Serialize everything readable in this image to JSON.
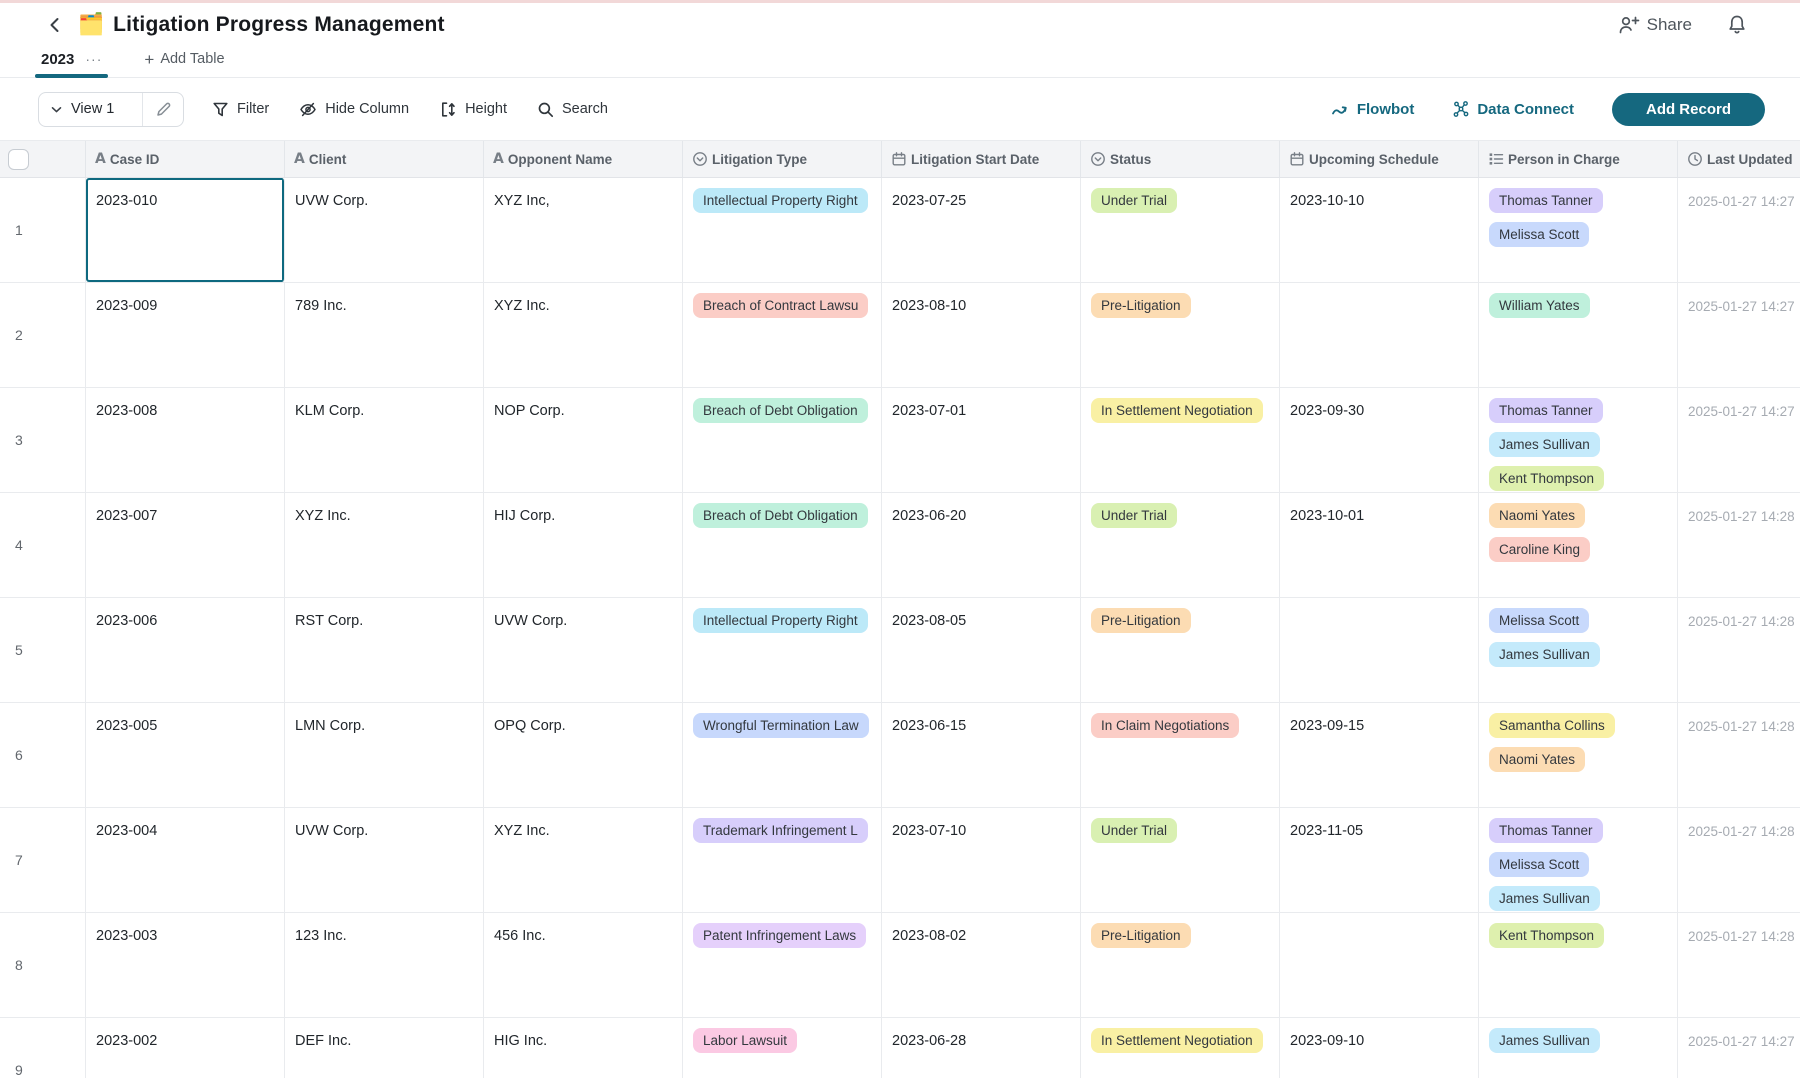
{
  "app": {
    "title_emoji": "🗂️",
    "title": "Litigation Progress Management",
    "share_label": "Share"
  },
  "tabs": {
    "active_tab": "2023",
    "more": "···",
    "add_table_plus": "+",
    "add_table": "Add Table"
  },
  "toolbar": {
    "view_name": "View 1",
    "filter": "Filter",
    "hide_column": "Hide Column",
    "height": "Height",
    "search": "Search",
    "flowbot": "Flowbot",
    "data_connect": "Data Connect",
    "add_record": "Add Record"
  },
  "colors": {
    "accent": "#15687F",
    "chip": {
      "cyan": "#BCE9F8",
      "salmon": "#FBCDC6",
      "mint": "#BFF0DC",
      "periwinkle": "#C7D8FC",
      "violet": "#D7CEFB",
      "purple": "#E5D0FB",
      "pink": "#FBC9E3",
      "green": "#D9F0B2",
      "peach": "#FCDCB3",
      "yellow": "#F9F0A4",
      "sky": "#C4EAFB",
      "lime": "#DEF0AE",
      "blue": "#C8D9FC"
    }
  },
  "table": {
    "columns": [
      {
        "label": "Case ID",
        "type": "text"
      },
      {
        "label": "Client",
        "type": "text"
      },
      {
        "label": "Opponent Name",
        "type": "text"
      },
      {
        "label": "Litigation Type",
        "type": "select"
      },
      {
        "label": "Litigation Start Date",
        "type": "date"
      },
      {
        "label": "Status",
        "type": "select"
      },
      {
        "label": "Upcoming Schedule",
        "type": "date"
      },
      {
        "label": "Person in Charge",
        "type": "person"
      },
      {
        "label": "Last Updated",
        "type": "time"
      }
    ],
    "rows": [
      {
        "num": "1",
        "case_id": "2023-010",
        "client": "UVW Corp.",
        "opponent": "XYZ Inc,",
        "type": {
          "label": "Intellectual Property Right",
          "color": "cyan"
        },
        "start": "2023-07-25",
        "status": {
          "label": "Under Trial",
          "color": "green"
        },
        "upcoming": "2023-10-10",
        "persons": [
          {
            "name": "Thomas Tanner",
            "color": "violet"
          },
          {
            "name": "Melissa Scott",
            "color": "blue"
          }
        ],
        "updated": "2025-01-27 14:27",
        "selected_cell": "case_id"
      },
      {
        "num": "2",
        "case_id": "2023-009",
        "client": "789 Inc.",
        "opponent": "XYZ Inc.",
        "type": {
          "label": "Breach of Contract Lawsu",
          "color": "salmon"
        },
        "start": "2023-08-10",
        "status": {
          "label": "Pre-Litigation",
          "color": "peach"
        },
        "upcoming": "",
        "persons": [
          {
            "name": "William Yates",
            "color": "mint"
          }
        ],
        "updated": "2025-01-27 14:27"
      },
      {
        "num": "3",
        "case_id": "2023-008",
        "client": "KLM Corp.",
        "opponent": "NOP Corp.",
        "type": {
          "label": "Breach of Debt Obligation",
          "color": "mint"
        },
        "start": "2023-07-01",
        "status": {
          "label": "In Settlement Negotiation",
          "color": "yellow"
        },
        "upcoming": "2023-09-30",
        "persons": [
          {
            "name": "Thomas Tanner",
            "color": "violet"
          },
          {
            "name": "James Sullivan",
            "color": "sky"
          },
          {
            "name": "Kent Thompson",
            "color": "lime"
          }
        ],
        "updated": "2025-01-27 14:27"
      },
      {
        "num": "4",
        "case_id": "2023-007",
        "client": "XYZ Inc.",
        "opponent": "HIJ Corp.",
        "type": {
          "label": "Breach of Debt Obligation",
          "color": "mint"
        },
        "start": "2023-06-20",
        "status": {
          "label": "Under Trial",
          "color": "green"
        },
        "upcoming": "2023-10-01",
        "persons": [
          {
            "name": "Naomi Yates",
            "color": "peach"
          },
          {
            "name": "Caroline King",
            "color": "salmon"
          }
        ],
        "updated": "2025-01-27 14:28"
      },
      {
        "num": "5",
        "case_id": "2023-006",
        "client": "RST Corp.",
        "opponent": "UVW Corp.",
        "type": {
          "label": "Intellectual Property Right",
          "color": "cyan"
        },
        "start": "2023-08-05",
        "status": {
          "label": "Pre-Litigation",
          "color": "peach"
        },
        "upcoming": "",
        "persons": [
          {
            "name": "Melissa Scott",
            "color": "blue"
          },
          {
            "name": "James Sullivan",
            "color": "sky"
          }
        ],
        "updated": "2025-01-27 14:28"
      },
      {
        "num": "6",
        "case_id": "2023-005",
        "client": "LMN Corp.",
        "opponent": "OPQ Corp.",
        "type": {
          "label": "Wrongful Termination Law",
          "color": "periwinkle"
        },
        "start": "2023-06-15",
        "status": {
          "label": "In Claim Negotiations",
          "color": "salmon"
        },
        "upcoming": "2023-09-15",
        "persons": [
          {
            "name": "Samantha Collins",
            "color": "yellow"
          },
          {
            "name": "Naomi Yates",
            "color": "peach"
          }
        ],
        "updated": "2025-01-27 14:28"
      },
      {
        "num": "7",
        "case_id": "2023-004",
        "client": "UVW Corp.",
        "opponent": "XYZ Inc.",
        "type": {
          "label": "Trademark Infringement L",
          "color": "violet"
        },
        "start": "2023-07-10",
        "status": {
          "label": "Under Trial",
          "color": "green"
        },
        "upcoming": "2023-11-05",
        "persons": [
          {
            "name": "Thomas Tanner",
            "color": "violet"
          },
          {
            "name": "Melissa Scott",
            "color": "blue"
          },
          {
            "name": "James Sullivan",
            "color": "sky"
          }
        ],
        "updated": "2025-01-27 14:28"
      },
      {
        "num": "8",
        "case_id": "2023-003",
        "client": "123 Inc.",
        "opponent": "456 Inc.",
        "type": {
          "label": "Patent Infringement Laws",
          "color": "purple"
        },
        "start": "2023-08-02",
        "status": {
          "label": "Pre-Litigation",
          "color": "peach"
        },
        "upcoming": "",
        "persons": [
          {
            "name": "Kent Thompson",
            "color": "lime"
          }
        ],
        "updated": "2025-01-27 14:28"
      },
      {
        "num": "9",
        "case_id": "2023-002",
        "client": "DEF Inc.",
        "opponent": "HIG Inc.",
        "type": {
          "label": "Labor Lawsuit",
          "color": "pink"
        },
        "start": "2023-06-28",
        "status": {
          "label": "In Settlement Negotiation",
          "color": "yellow"
        },
        "upcoming": "2023-09-10",
        "persons": [
          {
            "name": "James Sullivan",
            "color": "sky"
          }
        ],
        "updated": "2025-01-27 14:27"
      }
    ]
  }
}
